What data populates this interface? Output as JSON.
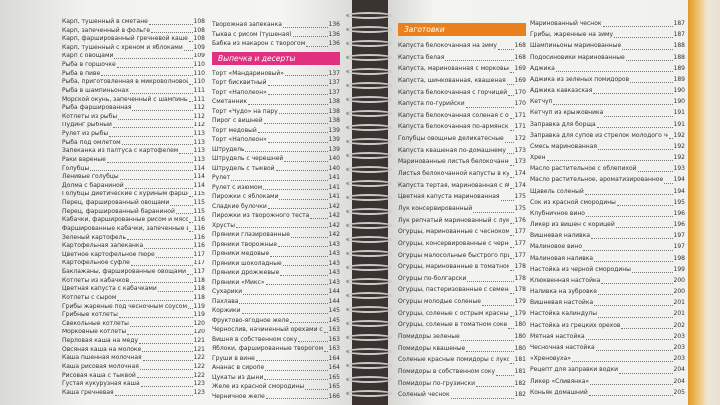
{
  "columns": [
    {
      "sections": [
        {
          "entries": [
            {
              "name": "Карп, тушенный в сметане",
              "page": 108
            },
            {
              "name": "Карп, запеченный в фольге",
              "page": 108
            },
            {
              "name": "Карп, фаршированный гречневой кашей",
              "page": 108
            },
            {
              "name": "Карп, тушенный с хреном и яблоками",
              "page": 109
            },
            {
              "name": "Карп с овощами",
              "page": 109
            },
            {
              "name": "Рыба в горшочке",
              "page": 110
            },
            {
              "name": "Рыба в пиве",
              "page": 110
            },
            {
              "name": "Рыба, приготовленная в микроволновой печи",
              "page": 110
            },
            {
              "name": "Рыба в шампиньонах",
              "page": 111
            },
            {
              "name": "Морской окунь, запеченный с шампиньонами",
              "page": 111
            },
            {
              "name": "Рыба фаршированная",
              "page": 112
            },
            {
              "name": "Котлеты из рыбы",
              "page": 112
            },
            {
              "name": "Пудинг рыбный",
              "page": 112
            },
            {
              "name": "Рулет из рыбы",
              "page": 113
            },
            {
              "name": "Рыба под омлетом",
              "page": 113
            },
            {
              "name": "Запеканка из палтуса с картофелем",
              "page": 113
            },
            {
              "name": "Раки вареные",
              "page": 113
            },
            {
              "name": "Голубцы",
              "page": 114
            },
            {
              "name": "Ленивые голубцы",
              "page": 114
            },
            {
              "name": "Долма с бараниной",
              "page": 114
            },
            {
              "name": "Голубцы диетические с куриным фаршем",
              "page": 115
            },
            {
              "name": "Перец, фаршированный овощами",
              "page": 115
            },
            {
              "name": "Перец, фаршированный бараниной",
              "page": 115
            },
            {
              "name": "Кабачки, фаршированные рисом и мясом",
              "page": 116
            },
            {
              "name": "Фаршированные кабачки, запеченные в духовке",
              "page": 116
            },
            {
              "name": "Зеленый картофель",
              "page": 116
            },
            {
              "name": "Картофельная запеканка",
              "page": 116
            },
            {
              "name": "Цветное картофельное пюре",
              "page": 117
            },
            {
              "name": "Картофельное суфле",
              "page": 117
            },
            {
              "name": "Баклажаны, фаршированные овощами",
              "page": 117
            },
            {
              "name": "Котлеты из кабачков",
              "page": 118
            },
            {
              "name": "Цветная капуста с кабачками",
              "page": 118
            },
            {
              "name": "Котлеты с сыром",
              "page": 118
            },
            {
              "name": "Грибы жареные под чесночным соусом",
              "page": 119
            },
            {
              "name": "Грибные котлеты",
              "page": 119
            },
            {
              "name": "Свекольные котлеты",
              "page": 120
            },
            {
              "name": "Морковные котлеты",
              "page": 120
            },
            {
              "name": "Перловая каша на меду",
              "page": 121
            },
            {
              "name": "Овсяная каша на молоке",
              "page": 121
            },
            {
              "name": "Каша пшенная молочная",
              "page": 122
            },
            {
              "name": "Каша рисовая молочная",
              "page": 122
            },
            {
              "name": "Рисовая каша с тыквой",
              "page": 122
            },
            {
              "name": "Густая кукурузная каша",
              "page": 123
            },
            {
              "name": "Каша гречневая",
              "page": 123
            }
          ]
        }
      ]
    },
    {
      "sections": [
        {
          "entries": [
            {
              "name": "Творожная запеканка",
              "page": 136
            },
            {
              "name": "Тыква с рисом (тушеная)",
              "page": 136
            },
            {
              "name": "Бабка из макарон с творогом",
              "page": 136
            }
          ]
        },
        {
          "heading": "Выпечка и десерты",
          "entries": [
            {
              "name": "Торт «Мандариновый»",
              "page": 137
            },
            {
              "name": "Торт бисквитный",
              "page": 137
            },
            {
              "name": "Торт «Наполеон»",
              "page": 137
            },
            {
              "name": "Сметанник",
              "page": 138
            },
            {
              "name": "Торт «Чудо» на пару",
              "page": 138
            },
            {
              "name": "Пирог с вишней",
              "page": 138
            },
            {
              "name": "Торт медовый",
              "page": 139
            },
            {
              "name": "Торт «Наполеон»",
              "page": 139
            },
            {
              "name": "Штрудель",
              "page": 139
            },
            {
              "name": "Штрудель с черешней",
              "page": 140
            },
            {
              "name": "Штрудель с тыквой",
              "page": 140
            },
            {
              "name": "Рулет",
              "page": 141
            },
            {
              "name": "Рулет с изюмом",
              "page": 141
            },
            {
              "name": "Пирожки с яблоками",
              "page": 141
            },
            {
              "name": "Сладкие булочки",
              "page": 142
            },
            {
              "name": "Пирожки из творожного теста",
              "page": 142
            },
            {
              "name": "Хрусты",
              "page": 142
            },
            {
              "name": "Пряники глазированные",
              "page": 142
            },
            {
              "name": "Пряники творожные",
              "page": 143
            },
            {
              "name": "Пряники медовые",
              "page": 143
            },
            {
              "name": "Пряники шоколадные",
              "page": 143
            },
            {
              "name": "Пряники дрожжевые",
              "page": 143
            },
            {
              "name": "Пряники «Микс»",
              "page": 143
            },
            {
              "name": "Сухарики",
              "page": 144
            },
            {
              "name": "Пахлава",
              "page": 144
            },
            {
              "name": "Коржики",
              "page": 145
            },
            {
              "name": "Фруктово-ягодное желе",
              "page": 145
            },
            {
              "name": "Чернослив, начиненный орехами со взбитым кремом",
              "page": 163
            },
            {
              "name": "Вишня в собственном соку",
              "page": 163
            },
            {
              "name": "Яблоки, фаршированные творогом",
              "page": 163
            },
            {
              "name": "Груши в вине",
              "page": 164
            },
            {
              "name": "Ананас в сиропе",
              "page": 164
            },
            {
              "name": "Цукаты из дыни",
              "page": 165
            },
            {
              "name": "Желе из красной смородины",
              "page": 165
            },
            {
              "name": "Черничное желе",
              "page": 166
            }
          ]
        }
      ]
    },
    {
      "sections": [
        {
          "heading": "Заготовки",
          "entries": [
            {
              "name": "Капуста белокочанная на зиму",
              "page": 168
            },
            {
              "name": "Капуста белая",
              "page": 168
            },
            {
              "name": "Капуста, маринованная с морковью",
              "page": 169
            },
            {
              "name": "Капуста, шинкованная, квашеная",
              "page": 169
            },
            {
              "name": "Капуста белокочанная с горчицей",
              "page": 170
            },
            {
              "name": "Капуста по-гурийски",
              "page": 170
            },
            {
              "name": "Капуста белокочанная соленая с овощами",
              "page": 171
            },
            {
              "name": "Капуста белокочанная по-армянски",
              "page": 171
            },
            {
              "name": "Голубцы овощные деликатесные",
              "page": 172
            },
            {
              "name": "Капуста квашеная по-домашнему",
              "page": 173
            },
            {
              "name": "Маринованные листья белокочанной капусты",
              "page": 173
            },
            {
              "name": "Листья белокочанной капусты в кукурузном рассоле",
              "page": 174
            },
            {
              "name": "Капуста тертая, маринованная с яблоками",
              "page": 174
            },
            {
              "name": "Цветная капуста маринованная",
              "page": 175
            },
            {
              "name": "Лук консервированный",
              "page": 175
            },
            {
              "name": "Лук репчатый маринованный с луком, морковью и чесноком",
              "page": 176
            },
            {
              "name": "Огурцы, маринованные с чесноком",
              "page": 177
            },
            {
              "name": "Огурцы, консервированные с черной смородиной",
              "page": 177
            },
            {
              "name": "Огурцы малосольные быстрого приготовления",
              "page": 177
            },
            {
              "name": "Огурцы, маринованные в томатном соке",
              "page": 178
            },
            {
              "name": "Огурцы по-болгарски",
              "page": 178
            },
            {
              "name": "Огурцы, пастеризованные с семенами укропа",
              "page": 178
            },
            {
              "name": "Огурцы молодые соленые",
              "page": 179
            },
            {
              "name": "Огурцы, соленые с острым красным перцем",
              "page": 179
            },
            {
              "name": "Огурцы, соленые в томатном соке",
              "page": 180
            },
            {
              "name": "Помидоры зеленые",
              "page": 180
            },
            {
              "name": "Помидоры квашеные",
              "page": 180
            },
            {
              "name": "Соленые красные помидоры с луком и морковью",
              "page": 181
            },
            {
              "name": "Помидоры в собственном соку",
              "page": 181
            },
            {
              "name": "Помидоры по-грузински",
              "page": 182
            },
            {
              "name": "Соленый чеснок",
              "page": 182
            }
          ]
        }
      ]
    },
    {
      "sections": [
        {
          "entries": [
            {
              "name": "Маринованный чеснок",
              "page": 187
            },
            {
              "name": "Грибы, жаренные на зиму",
              "page": 187
            },
            {
              "name": "Шампиньоны маринованные",
              "page": 188
            },
            {
              "name": "Подосиновики маринованные",
              "page": 188
            },
            {
              "name": "Аджика",
              "page": 189
            },
            {
              "name": "Аджика из зеленых помидоров",
              "page": 189
            },
            {
              "name": "Аджика кавказская",
              "page": 190
            },
            {
              "name": "Кетчуп",
              "page": 190
            },
            {
              "name": "Кетчуп из крыжовника",
              "page": 191
            },
            {
              "name": "Заправка для борща",
              "page": 191
            },
            {
              "name": "Заправка для супов из стрелок молодого чеснока",
              "page": 192
            },
            {
              "name": "Смесь маринованная",
              "page": 192
            },
            {
              "name": "Хрен",
              "page": 192
            },
            {
              "name": "Масло растительное с облепихой",
              "page": 193
            },
            {
              "name": "Масло растительное, ароматизированное",
              "page": 194
            },
            {
              "name": "Щавель соленый",
              "page": 194
            },
            {
              "name": "Сок из красной смородины",
              "page": 195
            },
            {
              "name": "Клубничное вино",
              "page": 196
            },
            {
              "name": "Ликер из вишен с корицей",
              "page": 196
            },
            {
              "name": "Вишневая наливка",
              "page": 197
            },
            {
              "name": "Малиновое вино",
              "page": 197
            },
            {
              "name": "Малиновая наливка",
              "page": 198
            },
            {
              "name": "Настойка из черной смородины",
              "page": 199
            },
            {
              "name": "Клюквенная настойка",
              "page": 200
            },
            {
              "name": "Наливка на зубровке",
              "page": 200
            },
            {
              "name": "Вишневая настойка",
              "page": 201
            },
            {
              "name": "Настойка калиндулы",
              "page": 201
            },
            {
              "name": "Настойка из грецких орехов",
              "page": 202
            },
            {
              "name": "Мятная настойка",
              "page": 203
            },
            {
              "name": "Чесночная настойка",
              "page": 203
            },
            {
              "name": "«Хреновуха»",
              "page": 203
            },
            {
              "name": "Рецепт для заправки водки",
              "page": 204
            },
            {
              "name": "Ликер «Сливянка»",
              "page": 204
            },
            {
              "name": "Коньяк домашний",
              "page": 205
            }
          ]
        }
      ]
    }
  ]
}
